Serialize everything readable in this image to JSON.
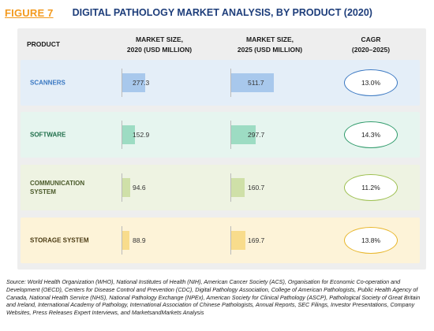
{
  "figure": {
    "number": "FIGURE 7",
    "title": "DIGITAL PATHOLOGY MARKET ANALYSIS, BY PRODUCT (2020)"
  },
  "columns": {
    "product": "PRODUCT",
    "size2020": [
      "MARKET SIZE,",
      "2020 (USD MILLION)"
    ],
    "size2025": [
      "MARKET SIZE,",
      "2025 (USD MILLION)"
    ],
    "cagr": [
      "CAGR",
      "(2020–2025)"
    ]
  },
  "chart_data": {
    "type": "table",
    "title": "DIGITAL PATHOLOGY MARKET ANALYSIS, BY PRODUCT (2020)",
    "categories": [
      "SCANNERS",
      "SOFTWARE",
      "COMMUNICATION SYSTEM",
      "STORAGE SYSTEM"
    ],
    "series": [
      {
        "name": "MARKET SIZE, 2020 (USD MILLION)",
        "values": [
          277.3,
          152.9,
          94.6,
          88.9
        ]
      },
      {
        "name": "MARKET SIZE, 2025 (USD MILLION)",
        "values": [
          511.7,
          297.7,
          160.7,
          169.7
        ]
      },
      {
        "name": "CAGR (2020–2025)",
        "values": [
          "13.0%",
          "14.3%",
          "11.2%",
          "13.8%"
        ]
      }
    ]
  },
  "rows": [
    {
      "label": [
        "SCANNERS"
      ],
      "v2020": 277.3,
      "v2025": 511.7,
      "v2020_text": "277.3",
      "v2025_text": "511.7",
      "cagr": "13.0%",
      "bg": "#e4eef8",
      "label_color": "#3a78c2",
      "bar_color": "#a8c8ec",
      "oval_color": "#3a78c2"
    },
    {
      "label": [
        "SOFTWARE"
      ],
      "v2020": 152.9,
      "v2025": 297.7,
      "v2020_text": "152.9",
      "v2025_text": "297.7",
      "cagr": "14.3%",
      "bg": "#e6f5ef",
      "label_color": "#1f6e4a",
      "bar_color": "#9ddcc3",
      "oval_color": "#2e9a6a"
    },
    {
      "label": [
        "COMMUNICATION",
        "SYSTEM"
      ],
      "v2020": 94.6,
      "v2025": 160.7,
      "v2020_text": "94.6",
      "v2025_text": "160.7",
      "cagr": "11.2%",
      "bg": "#eef3e2",
      "label_color": "#4a5a2a",
      "bar_color": "#cfe0a8",
      "oval_color": "#9cbf4e"
    },
    {
      "label": [
        "STORAGE SYSTEM"
      ],
      "v2020": 88.9,
      "v2025": 169.7,
      "v2020_text": "88.9",
      "v2025_text": "169.7",
      "cagr": "13.8%",
      "bg": "#fdf3d8",
      "label_color": "#4a3a12",
      "bar_color": "#f8dc8c",
      "oval_color": "#e8b62a"
    }
  ],
  "source": {
    "label": "Source:",
    "text": "World Health Organization (WHO), National Institutes of Health (NIH), American Cancer Society (ACS), Organisation for Economic Co-operation and Development (OECD), Centers for Disease Control and Prevention (CDC), Digital Pathology Association, College of American Pathologists, Public Health Agency of Canada, National Health Service (NHS), National Pathology Exchange (NPEx), American Society for Clinical Pathology (ASCP), Pathological Society of Great Britain and Ireland, International Academy of Pathology, International Association of Chinese Pathologists, Annual Reports, SEC Filings, Investor Presentations, Company Websites, Press Releases Expert Interviews, and MarketsandMarkets Analysis"
  }
}
